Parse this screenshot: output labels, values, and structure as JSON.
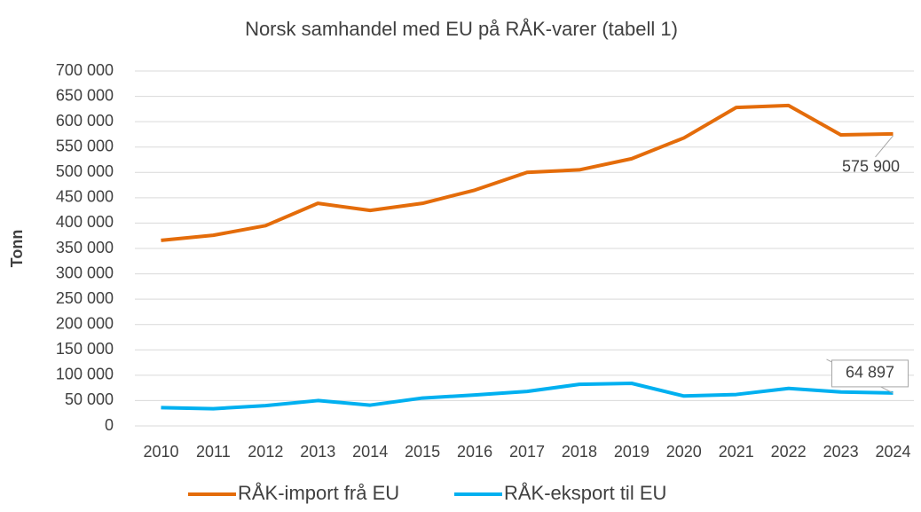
{
  "chart_data": {
    "type": "line",
    "title": "Norsk samhandel med EU på RÅK-varer (tabell 1)",
    "y_label": "Tonn",
    "categories": [
      "2010",
      "2011",
      "2012",
      "2013",
      "2014",
      "2015",
      "2016",
      "2017",
      "2018",
      "2019",
      "2020",
      "2021",
      "2022",
      "2023",
      "2024"
    ],
    "series": [
      {
        "name": "RÅK-import frå EU",
        "color": "#E46C0A",
        "values": [
          366000,
          376000,
          395000,
          439000,
          425000,
          439000,
          465000,
          500000,
          505000,
          527000,
          568000,
          628000,
          632000,
          574000,
          575900
        ],
        "value_labels": [
          null,
          null,
          null,
          null,
          null,
          null,
          null,
          null,
          null,
          null,
          null,
          null,
          null,
          null,
          "575 900"
        ]
      },
      {
        "name": "RÅK-eksport til EU",
        "color": "#00B0F0",
        "values": [
          36000,
          34000,
          40000,
          50000,
          41000,
          55000,
          61000,
          68000,
          82000,
          84000,
          59000,
          62000,
          74000,
          67000,
          64897
        ],
        "value_labels": [
          null,
          null,
          null,
          null,
          null,
          null,
          null,
          null,
          null,
          null,
          null,
          null,
          null,
          null,
          "64 897"
        ]
      }
    ],
    "ylim": [
      0,
      700000
    ],
    "yticks": [
      0,
      {
        "value": 50000,
        "label": "50 000"
      },
      {
        "value": 100000,
        "label": "100 000"
      },
      {
        "value": 150000,
        "label": "150 000"
      },
      {
        "value": 200000,
        "label": "200 000"
      },
      {
        "value": 250000,
        "label": "250 000"
      },
      {
        "value": 300000,
        "label": "300 000"
      },
      {
        "value": 350000,
        "label": "350 000"
      },
      {
        "value": 400000,
        "label": "400 000"
      },
      {
        "value": 450000,
        "label": "450 000"
      },
      {
        "value": 500000,
        "label": "500 000"
      },
      {
        "value": 550000,
        "label": "550 000"
      },
      {
        "value": 600000,
        "label": "600 000"
      },
      {
        "value": 650000,
        "label": "650 000"
      },
      {
        "value": 700000,
        "label": "700 000"
      }
    ],
    "grid": true,
    "legend": "bottom"
  }
}
